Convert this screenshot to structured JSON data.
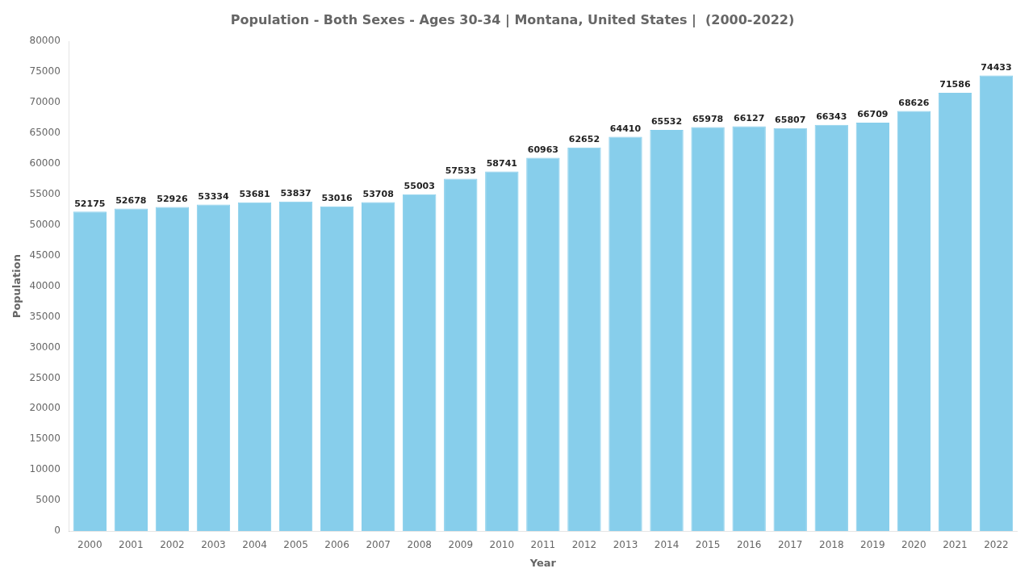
{
  "chart_data": {
    "type": "bar",
    "title": "Population - Both Sexes - Ages 30-34 | Montana, United States |  (2000-2022)",
    "xlabel": "Year",
    "ylabel": "Population",
    "categories": [
      "2000",
      "2001",
      "2002",
      "2003",
      "2004",
      "2005",
      "2006",
      "2007",
      "2008",
      "2009",
      "2010",
      "2011",
      "2012",
      "2013",
      "2014",
      "2015",
      "2016",
      "2017",
      "2018",
      "2019",
      "2020",
      "2021",
      "2022"
    ],
    "values": [
      52175,
      52678,
      52926,
      53334,
      53681,
      53837,
      53016,
      53708,
      55003,
      57533,
      58741,
      60963,
      62652,
      64410,
      65532,
      65978,
      66127,
      65807,
      66343,
      66709,
      68626,
      71586,
      74433
    ],
    "color": "#87CEEB",
    "ylim": [
      0,
      80000
    ],
    "yticks": [
      0,
      5000,
      10000,
      15000,
      20000,
      25000,
      30000,
      35000,
      40000,
      45000,
      50000,
      55000,
      60000,
      65000,
      70000,
      75000,
      80000
    ],
    "grid": false,
    "data_labels": true
  }
}
